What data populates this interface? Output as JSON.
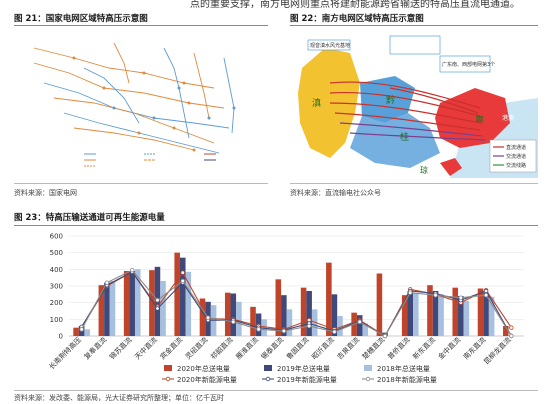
{
  "page": {
    "top_snippet": "点的重要支撑，南方电网则重点将建耐能源跨省输送的特高压直流电通道。"
  },
  "fig21": {
    "title": "图 21：国家电网区域特高压示意图",
    "source": "资料来源：国家电网"
  },
  "fig22": {
    "title": "图 22：南方电网区域特高压示意图",
    "source": "资料来源：直流输电社公众号",
    "map_labels": [
      "滇",
      "黔",
      "桂",
      "粤",
      "琼",
      "港澳"
    ],
    "callouts": [
      "观音滇水风光基地",
      "广东南、西部电网第3个"
    ],
    "legend": [
      "直流通道",
      "交流通道",
      "交流线路"
    ],
    "colors": {
      "province_yellow": "#f2c230",
      "province_red": "#e83a3a",
      "province_blue": "#3b8fd4",
      "sea": "#c9e4f2",
      "line_red": "#c8312c",
      "line_purple": "#7b3f8c",
      "line_green": "#2a9a3a"
    }
  },
  "fig23": {
    "title": "图 23：特高压输送通道可再生能源电量",
    "source": "资料来源：发改委、能源局，光大证券研究所整理；单位：亿千瓦时"
  },
  "chart_data": {
    "type": "bar",
    "categories": [
      "长南荆特高压",
      "复奉直流",
      "锦苏直流",
      "天中直流",
      "宾金直流",
      "灵绍直流",
      "祁韶直流",
      "雁淮直流",
      "锡泰直流",
      "鲁固直流",
      "昭沂直流",
      "吉泉直流",
      "楚穗直流",
      "普侨直流",
      "新东直流",
      "金中直流",
      "南东直流",
      "昆柳龙直流"
    ],
    "ylim": [
      0,
      600
    ],
    "yticks": [
      0,
      100,
      200,
      300,
      400,
      500,
      600
    ],
    "series": [
      {
        "name": "2020年总送电量",
        "kind": "bar",
        "color": "#c0442a",
        "values": [
          50,
          305,
          390,
          395,
          500,
          225,
          260,
          175,
          340,
          290,
          440,
          140,
          375,
          245,
          305,
          290,
          285,
          60
        ]
      },
      {
        "name": "2019年总送电量",
        "kind": "bar",
        "color": "#3f4a7a",
        "values": [
          60,
          320,
          390,
          415,
          470,
          205,
          255,
          135,
          245,
          270,
          250,
          125,
          20,
          270,
          270,
          240,
          260,
          0
        ]
      },
      {
        "name": "2018年总送电量",
        "kind": "bar",
        "color": "#a8c0e0",
        "values": [
          40,
          330,
          400,
          330,
          385,
          185,
          205,
          100,
          160,
          160,
          120,
          75,
          0,
          255,
          250,
          210,
          235,
          0
        ]
      },
      {
        "name": "2020年新能源电量",
        "kind": "line",
        "color": "#c0442a",
        "values": [
          50,
          300,
          385,
          175,
          380,
          105,
          100,
          60,
          40,
          95,
          40,
          95,
          0,
          280,
          250,
          200,
          275,
          50
        ]
      },
      {
        "name": "2019年新能源电量",
        "kind": "line",
        "color": "#3f4a7a",
        "values": [
          55,
          305,
          385,
          165,
          320,
          95,
          95,
          50,
          35,
          75,
          30,
          90,
          0,
          270,
          255,
          215,
          270,
          0
        ]
      },
      {
        "name": "2018年新能源电量",
        "kind": "line",
        "color": "#8a8a8a",
        "values": [
          40,
          320,
          395,
          215,
          330,
          110,
          85,
          40,
          30,
          60,
          25,
          85,
          0,
          260,
          245,
          230,
          245,
          0
        ]
      }
    ]
  }
}
